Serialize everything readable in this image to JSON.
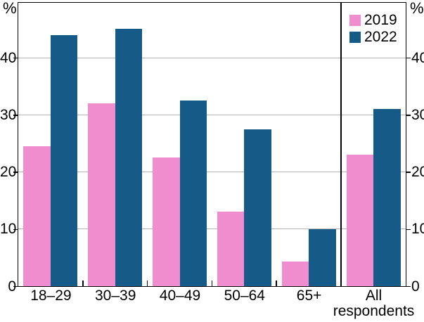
{
  "chart_data": {
    "type": "bar",
    "title": "",
    "y_unit": "%",
    "categories": [
      "18–29",
      "30–39",
      "40–49",
      "50–64",
      "65+",
      "All respondents"
    ],
    "series": [
      {
        "name": "2019",
        "color": "#f08dcf",
        "values": [
          24.5,
          32,
          22.5,
          13,
          4.3,
          23
        ]
      },
      {
        "name": "2022",
        "color": "#165a88",
        "values": [
          44,
          45,
          32.5,
          27.5,
          10,
          31
        ]
      }
    ],
    "yticks": [
      0,
      10,
      20,
      30,
      40
    ],
    "ylim": [
      0,
      49.6
    ],
    "grid": true,
    "legend_position": "top-right",
    "last_category_separated_by_vertical_line": true
  },
  "colors": {
    "axis": "#000000",
    "grid": "#b3b3b3",
    "background": "#ffffff",
    "series_2019": "#f08dcf",
    "series_2022": "#165a88"
  }
}
